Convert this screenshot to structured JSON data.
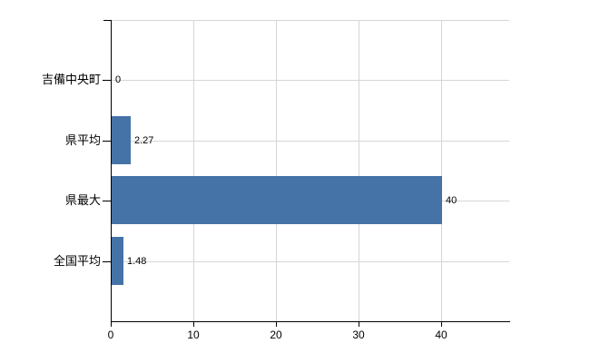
{
  "chart_data": {
    "type": "bar",
    "orientation": "horizontal",
    "title": "",
    "xlabel": "",
    "ylabel": "",
    "categories": [
      "吉備中央町",
      "県平均",
      "県最大",
      "全国平均"
    ],
    "values": [
      0,
      2.27,
      40,
      1.48
    ],
    "value_labels": [
      "0",
      "2.27",
      "40",
      "1.48"
    ],
    "xticks": [
      0,
      10,
      20,
      30,
      40
    ],
    "xlim": [
      0,
      48.2
    ],
    "grid": true,
    "legend": "none",
    "colors": {
      "bar": "#4572a7",
      "grid": "#d6d6d6",
      "axis": "#000000",
      "text": "#000000",
      "background": "#ffffff"
    }
  }
}
